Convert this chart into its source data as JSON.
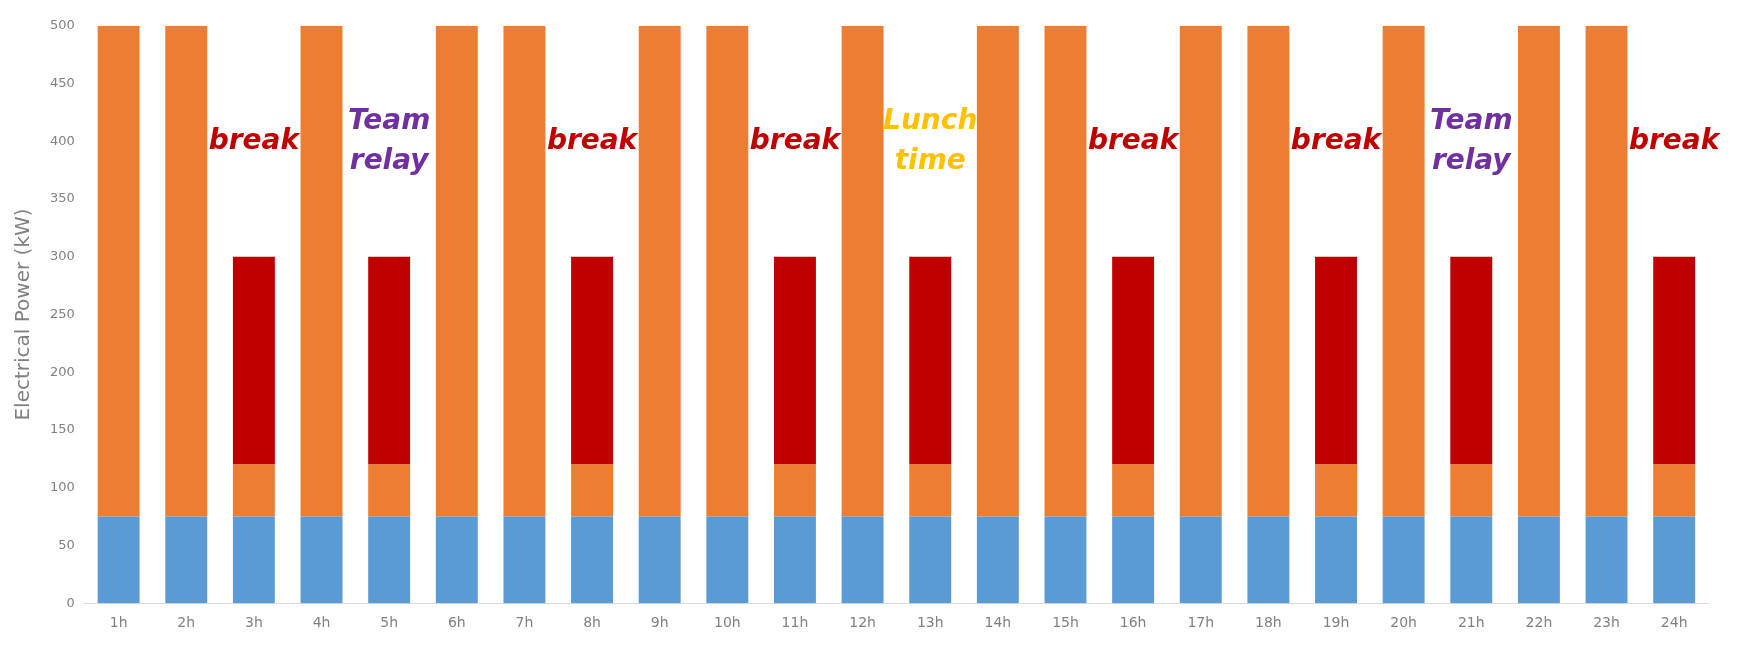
{
  "chart_data": {
    "type": "bar",
    "stacked": true,
    "ylabel": "Electrical Power (kW)",
    "categories": [
      "1h",
      "2h",
      "3h",
      "4h",
      "5h",
      "6h",
      "7h",
      "8h",
      "9h",
      "10h",
      "11h",
      "12h",
      "13h",
      "14h",
      "15h",
      "16h",
      "17h",
      "18h",
      "19h",
      "20h",
      "21h",
      "22h",
      "23h",
      "24h"
    ],
    "series": [
      {
        "color": "#5b9bd5",
        "values": [
          75,
          75,
          75,
          75,
          75,
          75,
          75,
          75,
          75,
          75,
          75,
          75,
          75,
          75,
          75,
          75,
          75,
          75,
          75,
          75,
          75,
          75,
          75,
          75
        ]
      },
      {
        "color": "#ed7d31",
        "values": [
          425,
          425,
          45,
          425,
          45,
          425,
          425,
          45,
          425,
          425,
          45,
          425,
          45,
          425,
          425,
          45,
          425,
          425,
          45,
          425,
          45,
          425,
          425,
          45
        ]
      },
      {
        "color": "#c00000",
        "values": [
          null,
          null,
          180,
          null,
          180,
          null,
          null,
          180,
          null,
          null,
          180,
          null,
          180,
          null,
          null,
          180,
          null,
          null,
          180,
          null,
          180,
          null,
          null,
          180
        ]
      }
    ],
    "ylim": [
      0,
      500
    ],
    "yticks": [
      0,
      50,
      100,
      150,
      200,
      250,
      300,
      350,
      400,
      450,
      500
    ],
    "grid": false,
    "annotations": [
      "break",
      "Team relay",
      "break",
      "break",
      "Lunch time",
      "break",
      "break",
      "Team relay",
      "break"
    ]
  }
}
